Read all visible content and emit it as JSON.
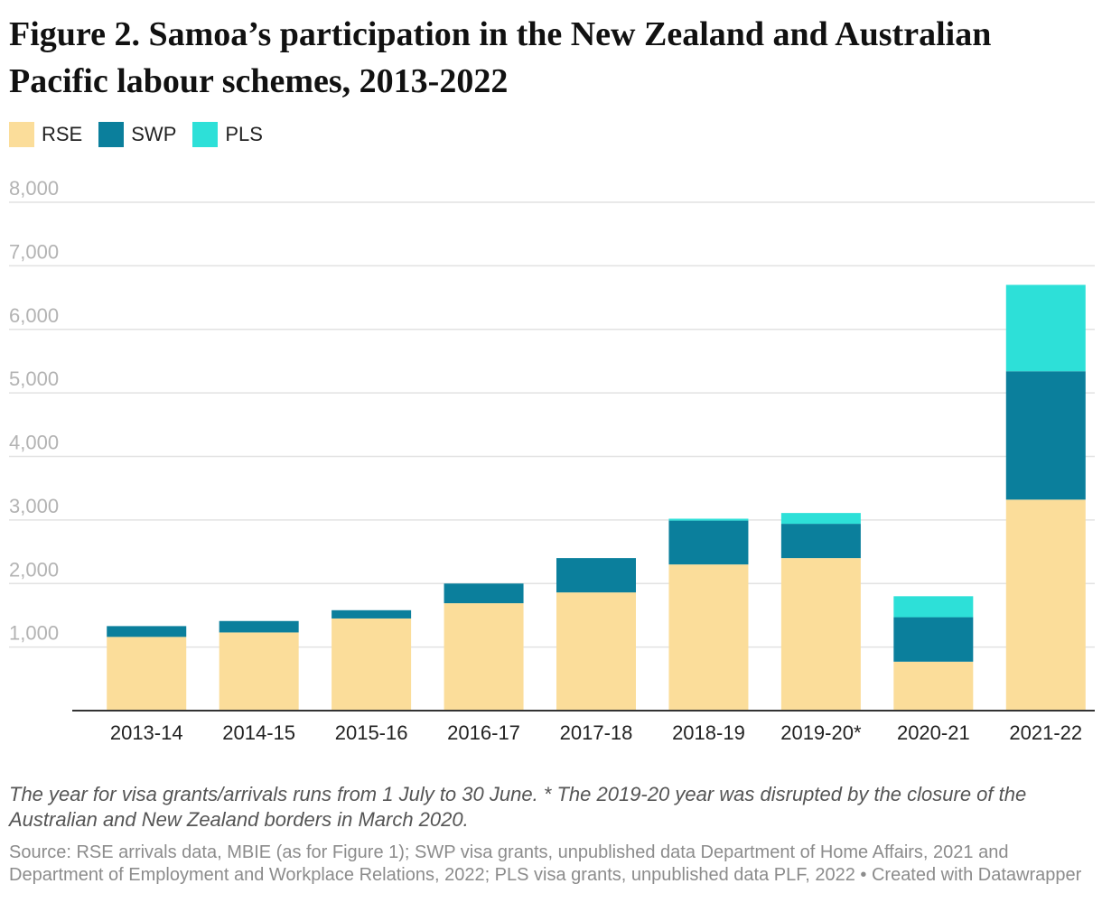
{
  "title": "Figure 2. Samoa’s participation in the New Zealand and Australian Pacific labour schemes, 2013-2022",
  "legend": [
    {
      "label": "RSE",
      "color": "#fbdd9a"
    },
    {
      "label": "SWP",
      "color": "#0b7f9c"
    },
    {
      "label": "PLS",
      "color": "#2de0d8"
    }
  ],
  "note": "The year for visa grants/arrivals runs from 1 July to 30 June. * The 2019-20 year was disrupted by the closure of the Australian and New Zealand borders in March 2020.",
  "source": "Source: RSE arrivals data, MBIE (as for Figure 1); SWP visa grants, unpublished data Department of Home Affairs, 2021 and Department of Employment and Workplace Relations, 2022; PLS visa grants, unpublished data PLF, 2022 • Created with Datawrapper",
  "chart_data": {
    "type": "bar",
    "stacked": true,
    "categories": [
      "2013-14",
      "2014-15",
      "2015-16",
      "2016-17",
      "2017-18",
      "2018-19",
      "2019-20*",
      "2020-21",
      "2021-22"
    ],
    "series": [
      {
        "name": "RSE",
        "color": "#fbdd9a",
        "values": [
          1160,
          1230,
          1450,
          1690,
          1860,
          2300,
          2400,
          770,
          3320
        ]
      },
      {
        "name": "SWP",
        "color": "#0b7f9c",
        "values": [
          170,
          180,
          130,
          310,
          540,
          690,
          540,
          700,
          2020
        ]
      },
      {
        "name": "PLS",
        "color": "#2de0d8",
        "values": [
          0,
          0,
          0,
          0,
          0,
          30,
          170,
          330,
          1360
        ]
      }
    ],
    "ylim": [
      0,
      8000
    ],
    "yticks": [
      0,
      1000,
      2000,
      3000,
      4000,
      5000,
      6000,
      7000,
      8000
    ],
    "ytick_labels": [
      "",
      "1,000",
      "2,000",
      "3,000",
      "4,000",
      "5,000",
      "6,000",
      "7,000",
      "8,000"
    ],
    "grid": true,
    "legend_position": "top-left"
  }
}
